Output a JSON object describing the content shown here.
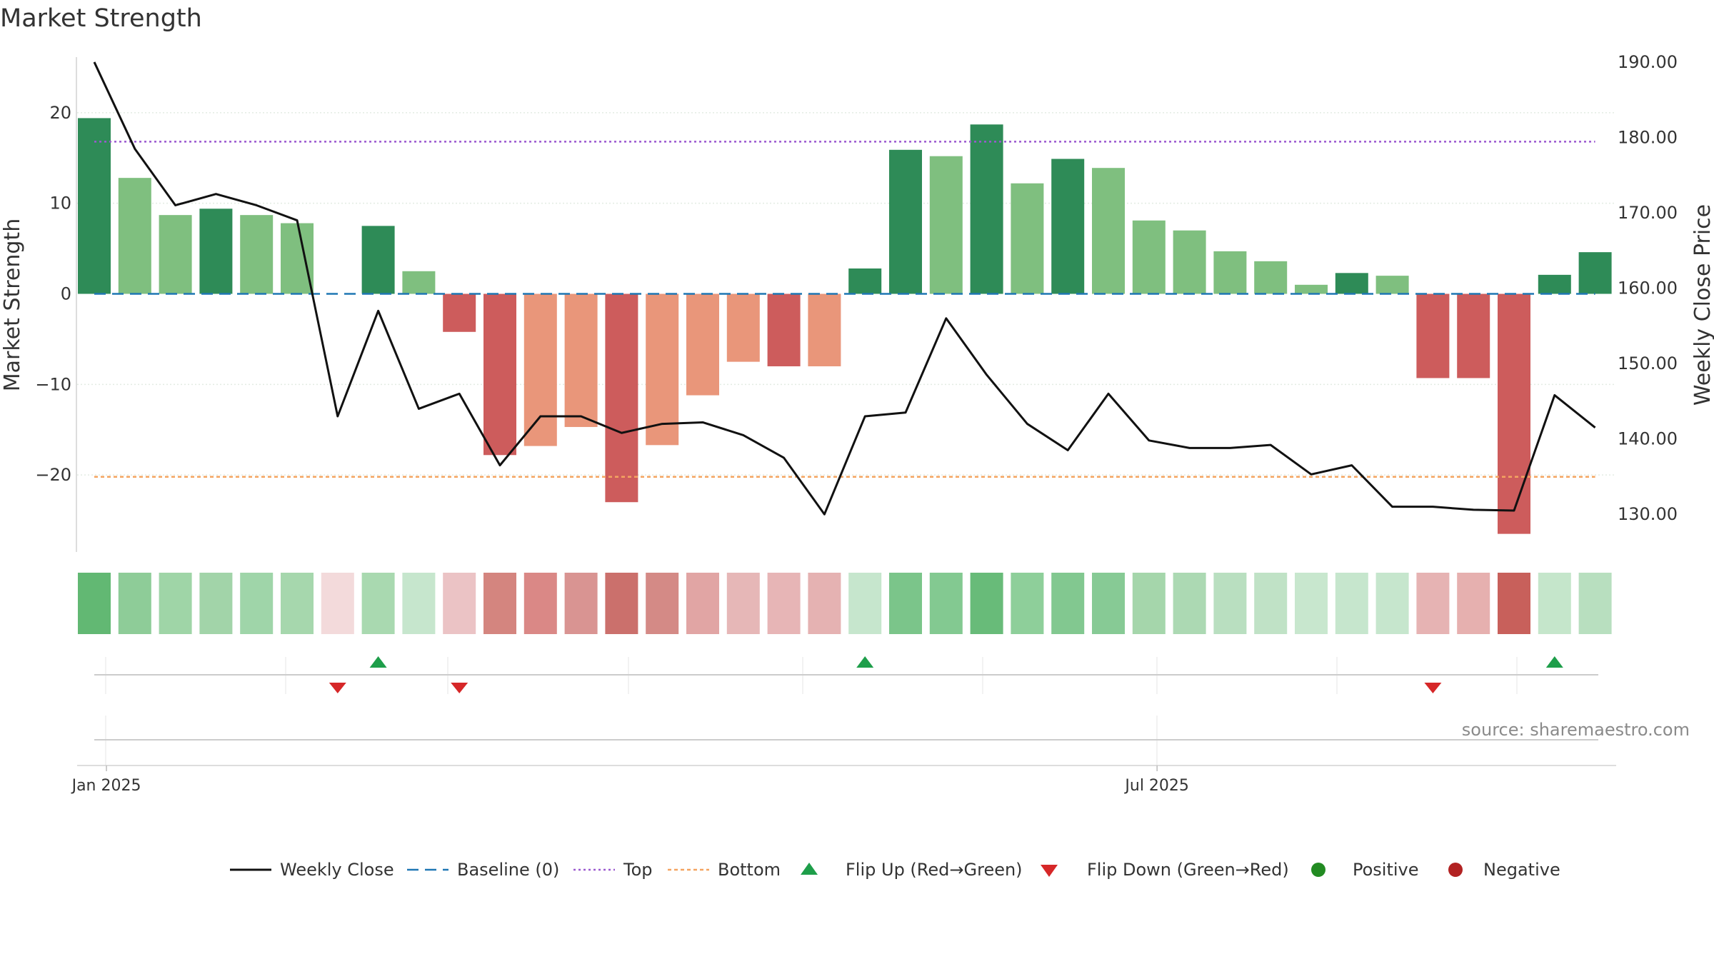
{
  "title": "Market Strength",
  "source": "source: sharemaestro.com",
  "colors": {
    "strong_green": "#2e8b57",
    "light_green": "#7fbf7f",
    "strong_red": "#cd5c5c",
    "light_red": "#e9967a",
    "line": "#111111",
    "baseline": "#1f77b4",
    "top": "#9b59d0",
    "bottom": "#f4a460",
    "flip_up": "#1e9e4a",
    "flip_down": "#d62728",
    "positive": "#228b22",
    "negative": "#b22222"
  },
  "chart_data": {
    "type": "bar",
    "title": "Market Strength",
    "ylabel": "Market Strength",
    "y2label": "Weekly Close Price",
    "ylim": [
      -28.5,
      28.5
    ],
    "y2lim": [
      125.0,
      193.5
    ],
    "yticks": [
      "20",
      "10",
      "0",
      "−10",
      "−20"
    ],
    "yticks_values": [
      20,
      10,
      0,
      -10,
      -20
    ],
    "y2ticks": [
      "190.00",
      "180.00",
      "170.00",
      "160.00",
      "150.00",
      "140.00",
      "130.00"
    ],
    "y2ticks_values": [
      190,
      180,
      170,
      160,
      150,
      140,
      130
    ],
    "xtick_labels": [
      "Jan 2025",
      "Jul 2025"
    ],
    "xtick_positions": [
      0.3,
      26.2
    ],
    "baseline": 0,
    "top_level": 16.8,
    "bottom_level": -20.2,
    "strength": [
      19.4,
      12.8,
      8.7,
      9.4,
      8.7,
      7.8,
      0.0,
      7.5,
      2.5,
      -4.2,
      -17.8,
      -16.8,
      -14.7,
      -23.0,
      -16.7,
      -11.2,
      -7.5,
      -8.0,
      -8.0,
      2.8,
      15.9,
      15.2,
      18.7,
      12.2,
      14.9,
      13.9,
      8.1,
      7.0,
      4.7,
      3.6,
      1.0,
      2.3,
      2.0,
      -9.3,
      -9.3,
      -26.5,
      2.1,
      4.6
    ],
    "strength_class": [
      "strong",
      "light",
      "light",
      "strong",
      "light",
      "light",
      "none",
      "strong",
      "light",
      "strong",
      "strong",
      "light",
      "light",
      "strong",
      "light",
      "light",
      "light",
      "strong",
      "light",
      "strong",
      "strong",
      "light",
      "strong",
      "light",
      "strong",
      "light",
      "light",
      "light",
      "light",
      "light",
      "light",
      "strong",
      "light",
      "strong",
      "strong",
      "strong",
      "strong",
      "strong"
    ],
    "weekly_close": [
      190.0,
      178.5,
      171.0,
      172.5,
      171.0,
      169.0,
      143.0,
      157.0,
      144.0,
      146.0,
      136.5,
      143.0,
      143.0,
      140.8,
      142.0,
      142.2,
      140.5,
      137.5,
      130.0,
      143.0,
      143.5,
      156.0,
      148.5,
      142.0,
      138.5,
      146.0,
      139.8,
      138.8,
      138.8,
      139.2,
      135.3,
      136.5,
      131.0,
      131.0,
      130.6,
      130.5,
      145.8,
      141.5
    ],
    "heatmap_colors": [
      "#62b873",
      "#8ecc98",
      "#9fd5a7",
      "#a2d4a9",
      "#9fd5a9",
      "#a6d7ad",
      "#f3dadb",
      "#a9d9b0",
      "#c6e6cd",
      "#ebc3c5",
      "#d4857f",
      "#da8886",
      "#d99492",
      "#cb706c",
      "#d48a86",
      "#e1a5a4",
      "#e6b7b7",
      "#e7b5b6",
      "#e5b2b2",
      "#c6e6cd",
      "#7bc58a",
      "#83c991",
      "#68bb79",
      "#8ecf9a",
      "#82c890",
      "#87ca95",
      "#a5d6ab",
      "#acd9b3",
      "#b9dfc0",
      "#c0e2c6",
      "#c8e7ce",
      "#c6e6cd",
      "#c6e6cd",
      "#e6b3b3",
      "#e6b0af",
      "#c8605b",
      "#c5e6cb",
      "#b8dfbf"
    ],
    "flips": [
      {
        "index": 6,
        "direction": "down"
      },
      {
        "index": 7,
        "direction": "up"
      },
      {
        "index": 9,
        "direction": "down"
      },
      {
        "index": 19,
        "direction": "up"
      },
      {
        "index": 33,
        "direction": "down"
      },
      {
        "index": 36,
        "direction": "up"
      }
    ],
    "legend": {
      "placement": "bottom",
      "entries": [
        {
          "label": "Weekly Close",
          "kind": "line"
        },
        {
          "label": "Baseline (0)",
          "kind": "baseline"
        },
        {
          "label": "Top",
          "kind": "top"
        },
        {
          "label": "Bottom",
          "kind": "bottom"
        },
        {
          "label": "Flip Up (Red→Green)",
          "kind": "flip_up"
        },
        {
          "label": "Flip Down (Green→Red)",
          "kind": "flip_down"
        },
        {
          "label": "Positive",
          "kind": "positive"
        },
        {
          "label": "Negative",
          "kind": "negative"
        }
      ]
    }
  }
}
